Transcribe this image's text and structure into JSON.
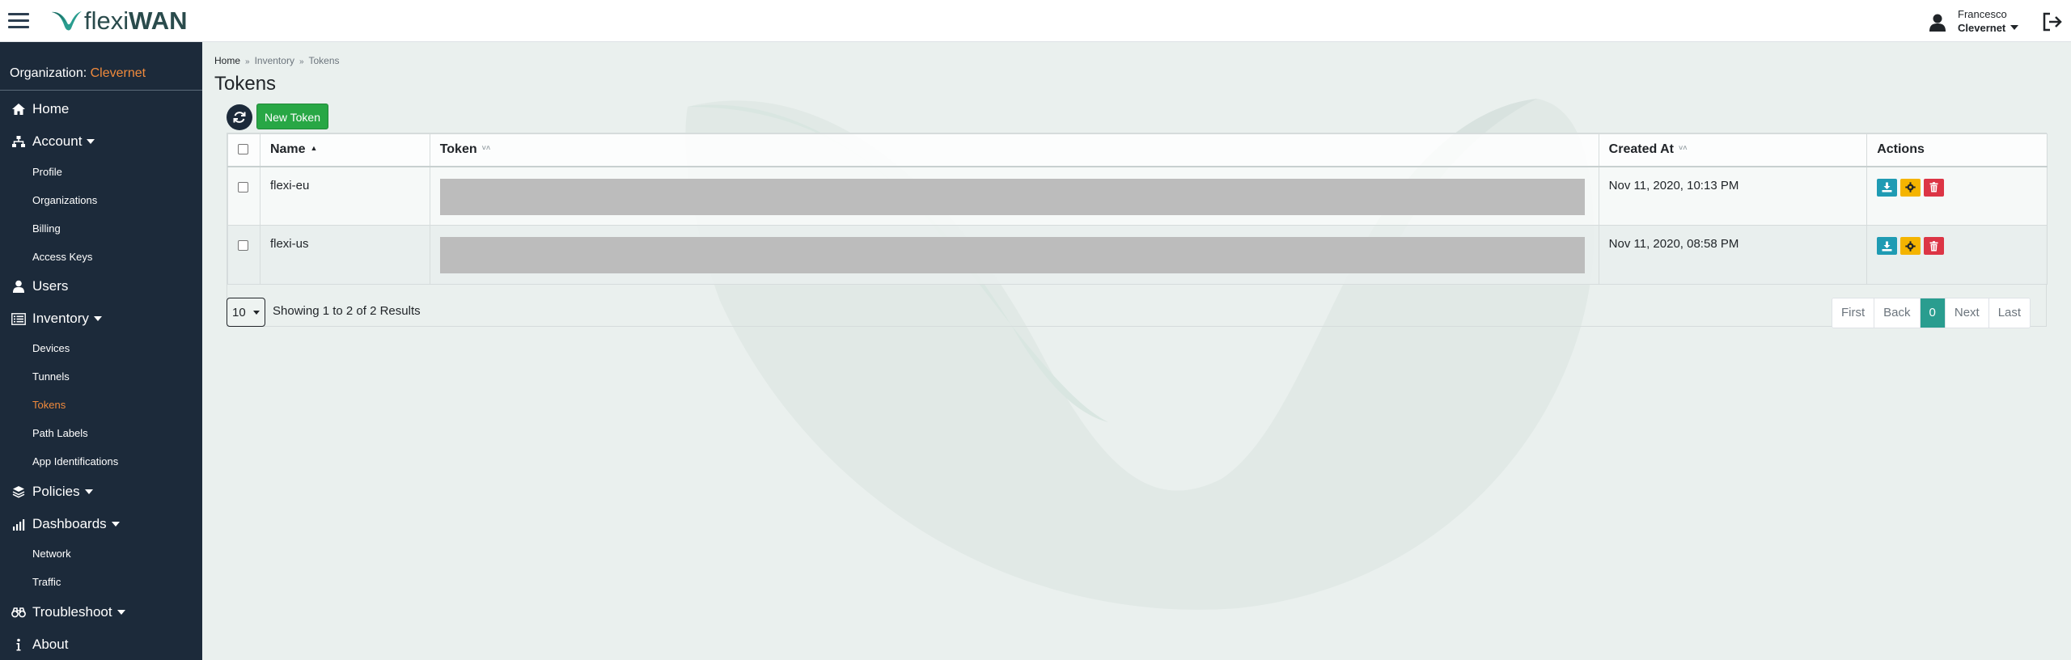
{
  "app": {
    "brand_prefix": "flexi",
    "brand_suffix": "WAN"
  },
  "header": {
    "user_name": "Francesco",
    "user_org": "Clevernet"
  },
  "sidebar": {
    "org_label": "Organization:",
    "org_name": "Clevernet",
    "items": {
      "home": "Home",
      "account": "Account",
      "profile": "Profile",
      "organizations": "Organizations",
      "billing": "Billing",
      "access_keys": "Access Keys",
      "users": "Users",
      "inventory": "Inventory",
      "devices": "Devices",
      "tunnels": "Tunnels",
      "tokens": "Tokens",
      "path_labels": "Path Labels",
      "app_identifications": "App Identifications",
      "policies": "Policies",
      "dashboards": "Dashboards",
      "network": "Network",
      "traffic": "Traffic",
      "troubleshoot": "Troubleshoot",
      "about": "About"
    },
    "active_item": "Tokens"
  },
  "breadcrumb": {
    "home": "Home",
    "inventory": "Inventory",
    "current": "Tokens"
  },
  "page": {
    "title": "Tokens",
    "new_token_label": "New Token"
  },
  "table": {
    "headers": {
      "name": "Name",
      "token": "Token",
      "created_at": "Created At",
      "actions": "Actions"
    },
    "rows": [
      {
        "name": "flexi-eu",
        "created_at": "Nov 11, 2020, 10:13 PM"
      },
      {
        "name": "flexi-us",
        "created_at": "Nov 11, 2020, 08:58 PM"
      }
    ]
  },
  "footer": {
    "page_size": "10",
    "showing": "Showing 1 to 2 of 2 Results",
    "pager": {
      "first": "First",
      "back": "Back",
      "current": "0",
      "next": "Next",
      "last": "Last"
    }
  },
  "colors": {
    "sidebar_bg": "#1c2a3a",
    "accent_orange": "#f08a3c",
    "new_token_green": "#28a745",
    "pager_active": "#2a9d8f",
    "download_btn": "#1f9bb3",
    "settings_btn": "#f4b400",
    "delete_btn": "#dc3545"
  }
}
